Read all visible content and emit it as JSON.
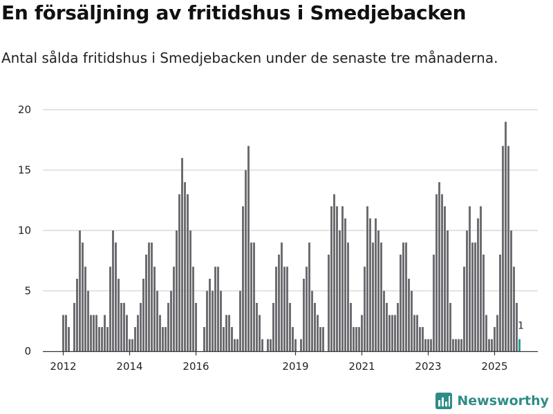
{
  "title": "En försäljning av fritidshus i Smedjebacken",
  "subtitle": "Antal sålda fritidshus i Smedjebacken under de senaste tre månaderna.",
  "brand": {
    "name": "Newsworthy",
    "icon": "newsworthy-logo-icon"
  },
  "colors": {
    "bar": "#6d6c71",
    "highlight": "#2a9d96",
    "grid": "#d9d9d9",
    "axis": "#333333",
    "brand": "#2e8d86"
  },
  "chart_data": {
    "type": "bar",
    "title": "En försäljning av fritidshus i Smedjebacken",
    "xlabel": "",
    "ylabel": "",
    "ylim": [
      0,
      20
    ],
    "yticks": [
      0,
      5,
      10,
      15,
      20
    ],
    "grid": true,
    "start": "2012-01",
    "xticks": [
      {
        "label": "2012",
        "index": 0
      },
      {
        "label": "2014",
        "index": 24
      },
      {
        "label": "2016",
        "index": 48
      },
      {
        "label": "2019",
        "index": 84
      },
      {
        "label": "2021",
        "index": 108
      },
      {
        "label": "2023",
        "index": 132
      },
      {
        "label": "2025",
        "index": 156
      }
    ],
    "values": [
      3,
      3,
      2,
      0,
      4,
      6,
      10,
      9,
      7,
      5,
      3,
      3,
      3,
      2,
      2,
      3,
      2,
      7,
      10,
      9,
      6,
      4,
      4,
      3,
      1,
      1,
      2,
      3,
      4,
      6,
      8,
      9,
      9,
      7,
      5,
      3,
      2,
      2,
      4,
      5,
      7,
      10,
      13,
      16,
      14,
      13,
      10,
      7,
      4,
      0,
      0,
      2,
      5,
      6,
      5,
      7,
      7,
      5,
      2,
      3,
      3,
      2,
      1,
      1,
      5,
      12,
      15,
      17,
      9,
      9,
      4,
      3,
      1,
      0,
      1,
      1,
      4,
      7,
      8,
      9,
      7,
      7,
      4,
      2,
      1,
      0,
      1,
      6,
      7,
      9,
      5,
      4,
      3,
      2,
      2,
      0,
      8,
      12,
      13,
      12,
      10,
      12,
      11,
      9,
      4,
      2,
      2,
      2,
      3,
      7,
      12,
      11,
      9,
      11,
      10,
      9,
      5,
      4,
      3,
      3,
      3,
      4,
      8,
      9,
      9,
      6,
      5,
      3,
      3,
      2,
      2,
      1,
      1,
      1,
      8,
      13,
      14,
      13,
      12,
      10,
      4,
      1,
      1,
      1,
      1,
      7,
      10,
      12,
      9,
      9,
      11,
      12,
      8,
      3,
      1,
      1,
      2,
      3,
      8,
      17,
      19,
      17,
      10,
      7,
      4,
      1
    ],
    "highlight_index": 165,
    "data_label": "1"
  }
}
